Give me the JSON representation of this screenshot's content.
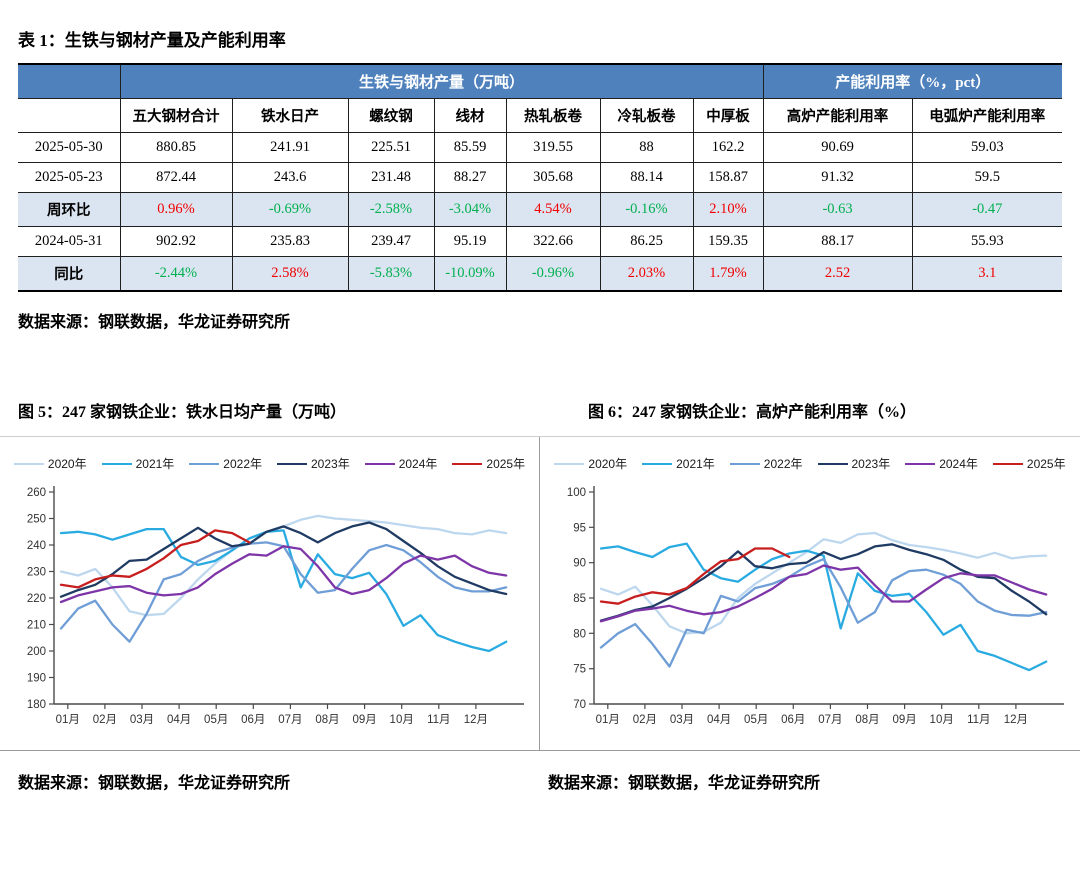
{
  "table1": {
    "title": "表 1：生铁与钢材产量及产能利用率",
    "group_headers": [
      {
        "label": "",
        "span": 1
      },
      {
        "label": "生铁与钢材产量（万吨）",
        "span": 7
      },
      {
        "label": "产能利用率（%，pct）",
        "span": 2
      }
    ],
    "columns": [
      "",
      "五大钢材合计",
      "铁水日产",
      "螺纹钢",
      "线材",
      "热轧板卷",
      "冷轧板卷",
      "中厚板",
      "高炉产能利用率",
      "电弧炉产能利用率"
    ],
    "rows": [
      {
        "label": "2025-05-30",
        "shaded": false,
        "cells": [
          "880.85",
          "241.91",
          "225.51",
          "85.59",
          "319.55",
          "88",
          "162.2",
          "90.69",
          "59.03"
        ],
        "cell_colors": null
      },
      {
        "label": "2025-05-23",
        "shaded": false,
        "cells": [
          "872.44",
          "243.6",
          "231.48",
          "88.27",
          "305.68",
          "88.14",
          "158.87",
          "91.32",
          "59.5"
        ],
        "cell_colors": null
      },
      {
        "label": "周环比",
        "shaded": true,
        "cells": [
          "0.96%",
          "-0.69%",
          "-2.58%",
          "-3.04%",
          "4.54%",
          "-0.16%",
          "2.10%",
          "-0.63",
          "-0.47"
        ],
        "cell_colors": [
          "r",
          "g",
          "g",
          "g",
          "r",
          "g",
          "r",
          "g",
          "g"
        ]
      },
      {
        "label": "2024-05-31",
        "shaded": false,
        "cells": [
          "902.92",
          "235.83",
          "239.47",
          "95.19",
          "322.66",
          "86.25",
          "159.35",
          "88.17",
          "55.93"
        ],
        "cell_colors": null
      },
      {
        "label": "同比",
        "shaded": true,
        "cells": [
          "-2.44%",
          "2.58%",
          "-5.83%",
          "-10.09%",
          "-0.96%",
          "2.03%",
          "1.79%",
          "2.52",
          "3.1"
        ],
        "cell_colors": [
          "g",
          "r",
          "g",
          "g",
          "g",
          "r",
          "r",
          "r",
          "r"
        ]
      }
    ],
    "source": "数据来源：钢联数据，华龙证券研究所"
  },
  "figures": {
    "fig5_source": "数据来源：钢联数据，华龙证券研究所",
    "fig6_source": "数据来源：钢联数据，华龙证券研究所"
  },
  "colors": {
    "header_blue": "#4f81bd",
    "shaded_row_blue": "#dbe5f1",
    "positive_red": "#f00000",
    "negative_green": "#00b050"
  },
  "chart_data": [
    {
      "type": "line",
      "title": "图 5：247 家钢铁企业：铁水日均产量（万吨）",
      "ylabel": "铁水日均产量（万吨）",
      "ylim": [
        180,
        260
      ],
      "ytick_step": 10,
      "grid": false,
      "legend_position": "top",
      "x_tick_labels": [
        "01月",
        "02月",
        "03月",
        "04月",
        "05月",
        "06月",
        "07月",
        "08月",
        "09月",
        "10月",
        "11月",
        "12月"
      ],
      "weeks_per_point": 2,
      "series": [
        {
          "name": "2020年",
          "color": "#bdd7ee",
          "values": [
            230,
            228.5,
            231,
            224,
            215,
            213.5,
            214,
            220,
            227,
            233,
            238,
            242.5,
            245,
            247,
            249.5,
            251,
            250,
            249.5,
            249,
            248.5,
            247.5,
            246.5,
            246,
            244.5,
            244,
            245.5,
            244.5
          ]
        },
        {
          "name": "2021年",
          "color": "#29abe2",
          "values": [
            244.5,
            245,
            244,
            242,
            244,
            246,
            246,
            235.5,
            232.5,
            234,
            238,
            242.5,
            245,
            245.5,
            224,
            236.5,
            229,
            227.5,
            229.5,
            221.5,
            209.5,
            213.5,
            206,
            203.5,
            201.5,
            200,
            203.5
          ]
        },
        {
          "name": "2022年",
          "color": "#6f9ed7",
          "values": [
            208.5,
            216,
            219,
            210,
            203.5,
            214,
            227,
            229,
            234,
            237,
            239,
            240.5,
            241,
            239.5,
            229,
            222,
            223,
            231,
            238,
            240,
            238,
            233.5,
            228,
            224,
            222.5,
            222.5,
            224
          ]
        },
        {
          "name": "2023年",
          "color": "#1f3b63",
          "values": [
            220.5,
            223,
            225,
            229,
            234,
            234.5,
            238.5,
            242.5,
            246.5,
            242.5,
            239.5,
            240.5,
            245,
            247,
            244.5,
            241,
            244.5,
            247,
            248.5,
            246,
            241.5,
            237,
            232,
            228,
            225.5,
            223,
            221.5
          ]
        },
        {
          "name": "2024年",
          "color": "#7d35a8",
          "values": [
            218.5,
            221,
            222.5,
            224,
            224.5,
            222,
            221,
            221.5,
            224,
            229,
            233,
            236.5,
            236,
            239.5,
            238.5,
            232,
            224,
            221.5,
            223,
            227.5,
            233,
            236,
            234.5,
            236,
            232,
            229.5,
            228.5
          ]
        },
        {
          "name": "2025年",
          "color": "#c71e1e",
          "values": [
            225,
            224,
            227,
            228.5,
            228,
            231,
            235,
            240,
            241.5,
            245.5,
            244.5,
            241
          ]
        }
      ]
    },
    {
      "type": "line",
      "title": "图 6：247 家钢铁企业：高炉产能利用率（%）",
      "ylabel": "高炉产能利用率（%）",
      "ylim": [
        70,
        100
      ],
      "ytick_step": 5,
      "grid": false,
      "legend_position": "top",
      "x_tick_labels": [
        "01月",
        "02月",
        "03月",
        "04月",
        "05月",
        "06月",
        "07月",
        "08月",
        "09月",
        "10月",
        "11月",
        "12月"
      ],
      "weeks_per_point": 2,
      "series": [
        {
          "name": "2020年",
          "color": "#bdd7ee",
          "values": [
            86.3,
            85.5,
            86.6,
            84,
            81,
            80,
            80.2,
            81.5,
            85,
            87,
            88.5,
            90,
            91.5,
            93.3,
            92.8,
            94,
            94.2,
            93.2,
            92.5,
            92.2,
            91.8,
            91.3,
            90.7,
            91.4,
            90.6,
            90.9,
            91
          ]
        },
        {
          "name": "2021年",
          "color": "#29abe2",
          "values": [
            92,
            92.3,
            91.5,
            90.8,
            92.2,
            92.7,
            89,
            87.8,
            87.3,
            89,
            90.5,
            91.3,
            91.7,
            91,
            80.7,
            88.5,
            86,
            85.3,
            85.6,
            83,
            79.8,
            81.2,
            77.5,
            76.8,
            75.8,
            74.8,
            76
          ]
        },
        {
          "name": "2022年",
          "color": "#6f9ed7",
          "values": [
            78,
            80,
            81.3,
            78.5,
            75.3,
            80.5,
            80,
            85.3,
            84.5,
            86.4,
            87,
            88,
            89.5,
            90.5,
            86.5,
            81.5,
            83,
            87.5,
            88.8,
            89,
            88.3,
            87,
            84.5,
            83.2,
            82.6,
            82.5,
            83
          ]
        },
        {
          "name": "2023年",
          "color": "#1f3b63",
          "values": [
            81.8,
            82.5,
            83.3,
            83.8,
            85,
            86.3,
            87.8,
            89.5,
            91.6,
            89.5,
            89.2,
            89.8,
            90,
            91.5,
            90.5,
            91.2,
            92.3,
            92.6,
            91.8,
            91.2,
            90.4,
            89,
            88,
            87.8,
            86,
            84.5,
            82.7
          ]
        },
        {
          "name": "2024年",
          "color": "#7d35a8",
          "values": [
            81.7,
            82.4,
            83.2,
            83.5,
            83.9,
            83.2,
            82.7,
            83,
            83.8,
            85,
            86.3,
            88,
            88.4,
            89.6,
            89,
            89.3,
            86.8,
            84.5,
            84.5,
            86.2,
            87.8,
            88.5,
            88.2,
            88.2,
            87.2,
            86.2,
            85.5
          ]
        },
        {
          "name": "2025年",
          "color": "#c71e1e",
          "values": [
            84.5,
            84.2,
            85.2,
            85.8,
            85.5,
            86.4,
            88.4,
            90.2,
            90.5,
            92,
            92,
            90.8
          ]
        }
      ]
    }
  ]
}
